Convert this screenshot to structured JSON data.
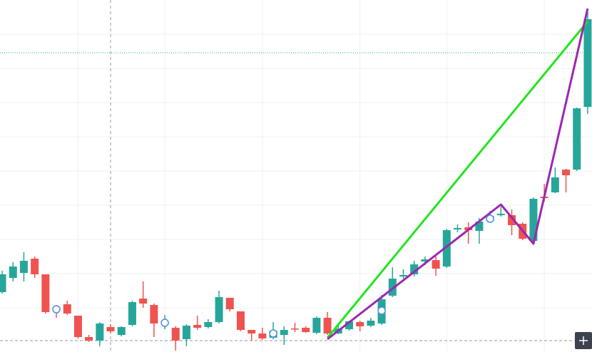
{
  "chart_data": {
    "type": "candlestick",
    "xlim": [
      -0.2,
      54.4
    ],
    "ylim": [
      0,
      494
    ],
    "xticks": [
      7,
      15,
      24,
      33,
      41,
      50
    ],
    "yticks": [
      62,
      110,
      158,
      206,
      254,
      302,
      350,
      398,
      446
    ],
    "grid": true,
    "up_color": "#26a69a",
    "down_color": "#ef5350",
    "open": [
      84,
      104,
      111,
      131,
      109,
      62,
      67,
      51,
      21,
      16,
      35,
      24,
      38,
      75,
      66,
      39,
      34,
      18,
      38,
      35,
      42,
      76,
      57,
      31,
      26,
      20,
      24,
      33,
      34,
      27,
      48,
      26,
      32,
      42,
      37,
      40,
      79,
      106,
      109,
      127,
      129,
      120,
      172,
      175,
      170,
      184,
      192,
      192,
      180,
      156,
      218,
      224,
      256,
      256,
      344
    ],
    "high": [
      114,
      126,
      140,
      134,
      109,
      66,
      72,
      51,
      24,
      42,
      39,
      36,
      72,
      99,
      68,
      52,
      36,
      39,
      51,
      46,
      86,
      76,
      57,
      31,
      34,
      42,
      36,
      41,
      36,
      50,
      56,
      37,
      44,
      44,
      48,
      80,
      119,
      116,
      128,
      134,
      134,
      173,
      179,
      182,
      188,
      198,
      204,
      200,
      182,
      217,
      236,
      259,
      257,
      343,
      479
    ],
    "low": [
      82,
      99,
      99,
      104,
      54,
      48,
      52,
      19,
      14,
      8,
      26,
      22,
      36,
      62,
      21,
      32,
      2,
      8,
      31,
      33,
      40,
      57,
      29,
      16,
      17,
      18,
      10,
      28,
      27,
      25,
      24,
      25,
      30,
      29,
      35,
      38,
      77,
      103,
      106,
      122,
      107,
      118,
      168,
      152,
      152,
      183,
      190,
      164,
      157,
      153,
      211,
      223,
      224,
      254,
      334
    ],
    "close": [
      109,
      120,
      128,
      109,
      56,
      59,
      54,
      21,
      16,
      40,
      29,
      35,
      70,
      68,
      40,
      41,
      16,
      37,
      34,
      42,
      77,
      60,
      31,
      26,
      19,
      30,
      31,
      32,
      28,
      48,
      26,
      33,
      43,
      36,
      44,
      74,
      103,
      108,
      123,
      130,
      117,
      171,
      174,
      171,
      183,
      191,
      194,
      178,
      159,
      215,
      216,
      245,
      248,
      342,
      467
    ],
    "markers": {
      "color": "#4a90e2",
      "x": [
        5,
        15,
        25,
        35,
        45
      ],
      "values": [
        60,
        41,
        26,
        58,
        187
      ]
    },
    "lines": [
      {
        "color": "#22e61e",
        "x": [
          30,
          54
        ],
        "values": [
          20,
          464
        ]
      },
      {
        "color": "#9c27b0",
        "x": [
          30,
          46,
          49,
          54
        ],
        "values": [
          18,
          207,
          152,
          482
        ]
      }
    ],
    "hlines": [
      {
        "color": "#26a69a",
        "style": "dotted",
        "value": 420
      },
      {
        "color": "#9598a1",
        "style": "dashed",
        "value": 16
      }
    ],
    "crosshair_x": 10
  }
}
